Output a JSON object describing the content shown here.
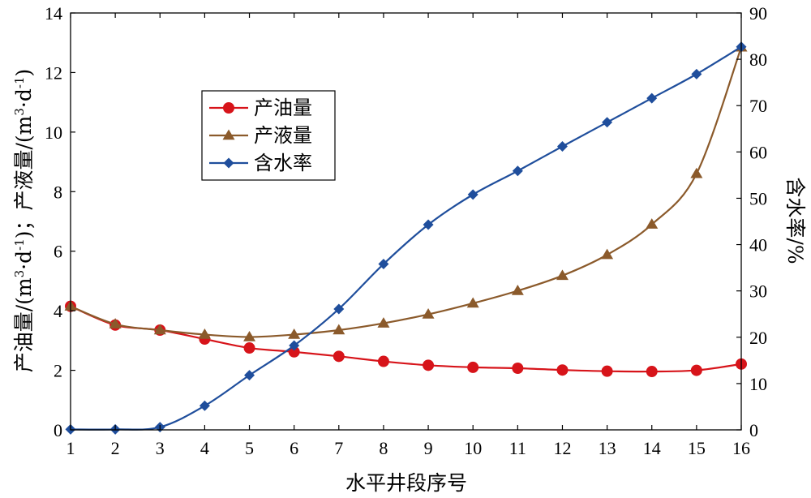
{
  "chart_data": {
    "type": "line",
    "xlabel": "水平井段序号",
    "ylabel_left_a": "产油量/(m",
    "ylabel_left_b": "·d",
    "ylabel_left_c": ")；产液量/(m",
    "ylabel_left_d": "·d",
    "ylabel_left_e": ")",
    "ylabel_right": "含水率/%",
    "sup_3": "3",
    "sup_neg1": "-1",
    "x": [
      1,
      2,
      3,
      4,
      5,
      6,
      7,
      8,
      9,
      10,
      11,
      12,
      13,
      14,
      15,
      16
    ],
    "xlim": [
      1,
      16
    ],
    "ylim_left": [
      0,
      14
    ],
    "ylim_right": [
      0,
      90
    ],
    "x_ticks": [
      "1",
      "2",
      "3",
      "4",
      "5",
      "6",
      "7",
      "8",
      "9",
      "10",
      "11",
      "12",
      "13",
      "14",
      "15",
      "16"
    ],
    "y_left_ticks": [
      "0",
      "2",
      "4",
      "6",
      "8",
      "10",
      "12",
      "14"
    ],
    "y_right_ticks": [
      "0",
      "10",
      "20",
      "30",
      "40",
      "50",
      "60",
      "70",
      "80",
      "90"
    ],
    "legend_position": "upper-left-inside",
    "series": [
      {
        "name": "产油量",
        "axis": "left",
        "marker": "circle",
        "color": "#d7141a",
        "values": [
          4.15,
          3.52,
          3.35,
          3.05,
          2.75,
          2.62,
          2.47,
          2.3,
          2.17,
          2.1,
          2.07,
          2.01,
          1.97,
          1.96,
          2.0,
          2.21
        ]
      },
      {
        "name": "产液量",
        "axis": "left",
        "marker": "triangle",
        "color": "#8b5a2b",
        "values": [
          4.15,
          3.55,
          3.35,
          3.2,
          3.12,
          3.2,
          3.35,
          3.58,
          3.88,
          4.25,
          4.67,
          5.18,
          5.88,
          6.9,
          8.6,
          12.85
        ]
      },
      {
        "name": "含水率",
        "axis": "right",
        "marker": "diamond",
        "color": "#1f4e9c",
        "values": [
          0.1,
          0.1,
          0.6,
          5.2,
          11.8,
          18.2,
          26.1,
          35.8,
          44.3,
          50.8,
          55.9,
          61.2,
          66.4,
          71.6,
          76.8,
          82.7
        ]
      }
    ]
  }
}
